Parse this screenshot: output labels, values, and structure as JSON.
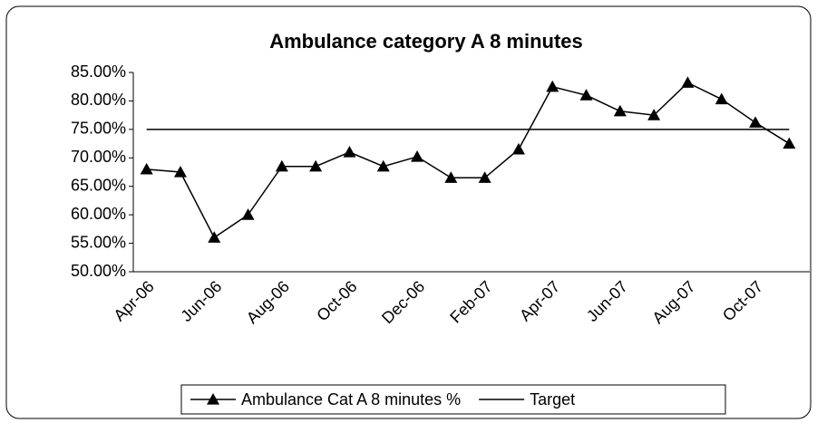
{
  "chart_data": {
    "type": "line",
    "title": "Ambulance category A 8 minutes",
    "categories": [
      "Apr-06",
      null,
      "Jun-06",
      null,
      "Aug-06",
      null,
      "Oct-06",
      null,
      "Dec-06",
      null,
      "Feb-07",
      null,
      "Apr-07",
      null,
      "Jun-07",
      null,
      "Aug-07",
      null,
      "Oct-07",
      null
    ],
    "series": [
      {
        "name": "Ambulance Cat A 8 minutes %",
        "color": "#000000",
        "marker": "triangle",
        "values": [
          68,
          67.5,
          56,
          60,
          68.5,
          68.5,
          71,
          68.5,
          70.2,
          66.5,
          66.5,
          71.5,
          82.5,
          81,
          78.2,
          77.5,
          83.2,
          80.3,
          76.2,
          72.5
        ]
      },
      {
        "name": "Target",
        "color": "#000000",
        "values": [
          75,
          75,
          75,
          75,
          75,
          75,
          75,
          75,
          75,
          75,
          75,
          75,
          75,
          75,
          75,
          75,
          75,
          75,
          75,
          75
        ]
      }
    ],
    "ylim": [
      50,
      85
    ],
    "yticks": [
      {
        "value": 50,
        "label": "50.00%"
      },
      {
        "value": 55,
        "label": "55.00%"
      },
      {
        "value": 60,
        "label": "60.00%"
      },
      {
        "value": 65,
        "label": "65.00%"
      },
      {
        "value": 70,
        "label": "70.00%"
      },
      {
        "value": 75,
        "label": "75.00%"
      },
      {
        "value": 80,
        "label": "80.00%"
      },
      {
        "value": 85,
        "label": "85.00%"
      }
    ],
    "legend": "bottom"
  }
}
